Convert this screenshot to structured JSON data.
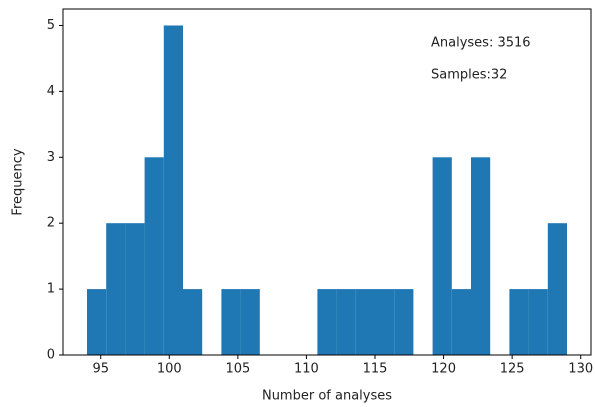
{
  "chart_data": {
    "type": "histogram",
    "xlabel": "Number of analyses",
    "ylabel": "Frequency",
    "annotations": [
      "Analyses: 3516",
      "Samples:32"
    ],
    "bins": [
      94,
      95.4,
      96.8,
      98.2,
      99.6,
      101,
      102.4,
      103.8,
      105.2,
      106.6,
      108,
      109.4,
      110.8,
      112.2,
      113.6,
      115,
      116.4,
      117.8,
      119.2,
      120.6,
      122,
      123.4,
      124.8,
      126.2,
      127.6,
      129
    ],
    "values": [
      1,
      2,
      2,
      3,
      5,
      1,
      0,
      1,
      1,
      0,
      0,
      0,
      1,
      1,
      1,
      1,
      1,
      0,
      3,
      1,
      3,
      0,
      1,
      1,
      2
    ],
    "color": "#1f77b4",
    "xlim": [
      92.25,
      130.75
    ],
    "xticks": [
      95,
      100,
      105,
      110,
      115,
      120,
      125,
      130
    ],
    "ylim": [
      0,
      5.25
    ],
    "yticks": [
      0,
      1,
      2,
      3,
      4,
      5
    ]
  }
}
